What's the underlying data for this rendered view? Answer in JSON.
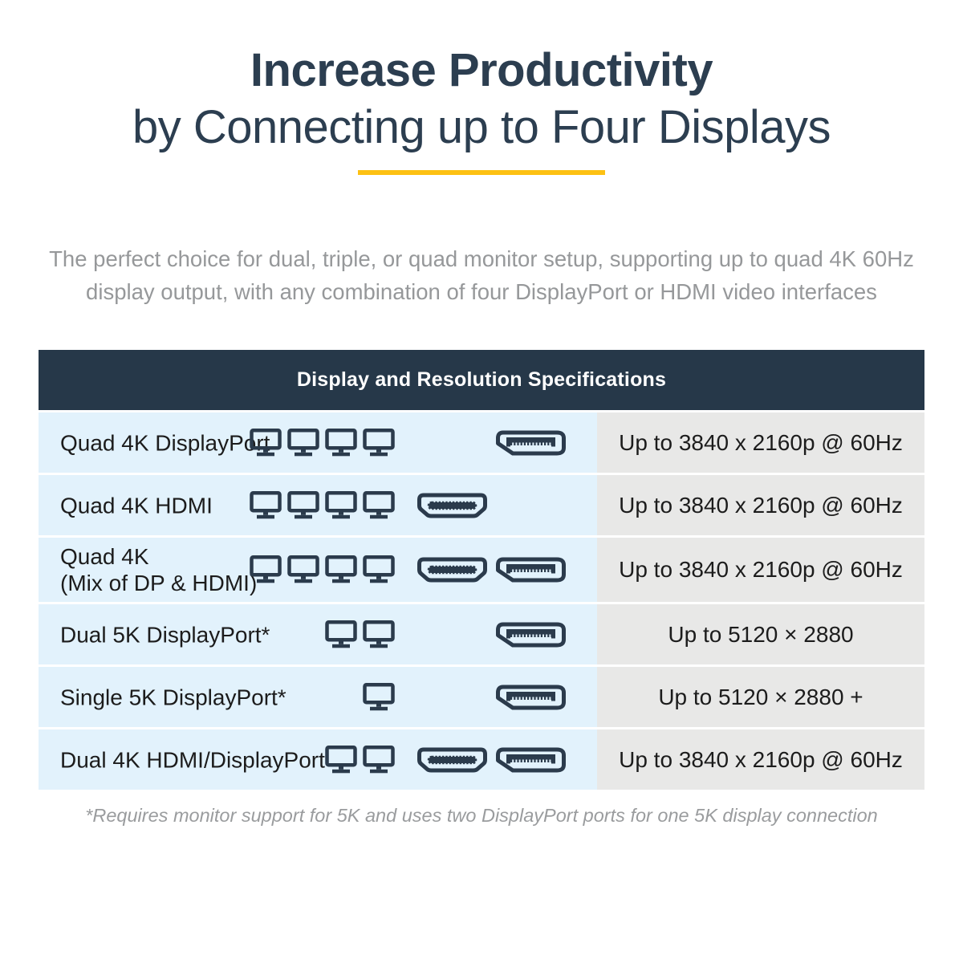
{
  "title": {
    "line1": "Increase Productivity",
    "line2": "by Connecting up to Four Displays"
  },
  "intro_lines": [
    "The perfect choice for dual, triple, or quad monitor setup, supporting up to quad 4K 60Hz",
    "display output, with any combination of four DisplayPort or HDMI video interfaces"
  ],
  "table": {
    "header": "Display and Resolution Specifications",
    "rows": [
      {
        "label": "Quad 4K DisplayPort",
        "label_line2": "",
        "monitors": 4,
        "connectors": [
          "displayport"
        ],
        "resolution": "Up to 3840 x 2160p @ 60Hz"
      },
      {
        "label": "Quad 4K HDMI",
        "label_line2": "",
        "monitors": 4,
        "connectors": [
          "hdmi"
        ],
        "resolution": "Up to 3840 x 2160p @ 60Hz"
      },
      {
        "label": "Quad 4K",
        "label_line2": "(Mix of DP & HDMI)",
        "monitors": 4,
        "connectors": [
          "hdmi",
          "displayport"
        ],
        "resolution": "Up to 3840 x 2160p @ 60Hz"
      },
      {
        "label": "Dual 5K DisplayPort*",
        "label_line2": "",
        "monitors": 2,
        "connectors": [
          "displayport"
        ],
        "resolution": "Up to 5120 × 2880"
      },
      {
        "label": "Single 5K DisplayPort*",
        "label_line2": "",
        "monitors": 1,
        "connectors": [
          "displayport"
        ],
        "resolution": "Up to 5120 × 2880 +"
      },
      {
        "label": "Dual 4K HDMI/DisplayPort",
        "label_line2": "",
        "monitors": 2,
        "connectors": [
          "hdmi",
          "displayport"
        ],
        "resolution": "Up to 3840 x 2160p @ 60Hz"
      }
    ]
  },
  "footnote": "*Requires monitor support for 5K and uses two DisplayPort ports for one 5K display connection",
  "colors": {
    "title_navy": "#2c3e50",
    "header_navy": "#263849",
    "icon_navy": "#2b3b4c",
    "accent_yellow": "#fdc113",
    "row_blue": "#e2f2fc",
    "row_gray": "#e8e8e7",
    "intro_gray": "#96989a"
  },
  "icon_names": [
    "monitor-icon",
    "hdmi-icon",
    "displayport-icon"
  ]
}
